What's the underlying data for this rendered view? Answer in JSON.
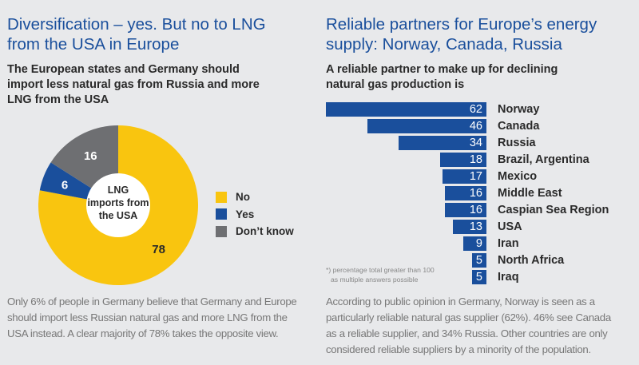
{
  "left_panel": {
    "title_line1": "Diversification – yes. But no to LNG",
    "title_line2": "from the USA in Europe",
    "subtitle_line1": "The European states and Germany should",
    "subtitle_line2": "import less natural gas from Russia and more",
    "subtitle_line3": "LNG from the USA",
    "body_line1": "Only 6% of people in Germany believe that Germany and Europe",
    "body_line2": "should import less Russian natural gas and more LNG from the",
    "body_line3": "USA instead. A clear majority of 78% takes the opposite view."
  },
  "right_panel": {
    "title_line1": "Reliable partners for Europe’s energy",
    "title_line2": "supply: Norway, Canada, Russia",
    "subtitle_line1": "A reliable partner to make up for declining",
    "subtitle_line2": "natural gas production is",
    "footnote_line1": "*) percentage total greater than 100",
    "footnote_line2": "as multiple answers possible",
    "body_line1": "According to public opinion in Germany, Norway is seen as a",
    "body_line2": "particularly reliable natural gas supplier (62%). 46% see Canada",
    "body_line3": "as a reliable supplier, and 34% Russia. Other countries are only",
    "body_line4": "considered reliable suppliers by a minority of the population."
  },
  "chart_data": [
    {
      "type": "pie",
      "title": "LNG imports from the USA",
      "center_label_line1": "LNG",
      "center_label_line2": "imports from",
      "center_label_line3": "the USA",
      "categories": [
        "No",
        "Yes",
        "Don't know"
      ],
      "values": [
        78,
        6,
        16
      ],
      "value_labels": [
        "78",
        "6",
        "16"
      ],
      "colors": [
        "#f9c50f",
        "#1a4f9c",
        "#6e6f72"
      ],
      "legend_labels": [
        "No",
        "Yes",
        "Don’t know"
      ],
      "legend": "right"
    },
    {
      "type": "bar",
      "orientation": "horizontal",
      "categories": [
        "Norway",
        "Canada",
        "Russia",
        "Brazil, Argentina",
        "Mexico",
        "Middle East",
        "Caspian Sea Region",
        "USA",
        "Iran",
        "North Africa",
        "Iraq"
      ],
      "values": [
        62,
        46,
        34,
        18,
        17,
        16,
        16,
        13,
        9,
        5,
        5
      ],
      "value_labels": [
        "62",
        "46",
        "34",
        "18",
        "17",
        "16",
        "16",
        "13",
        "9",
        "5",
        "5"
      ],
      "color": "#1a4f9c",
      "xlim": [
        0,
        62
      ]
    }
  ]
}
